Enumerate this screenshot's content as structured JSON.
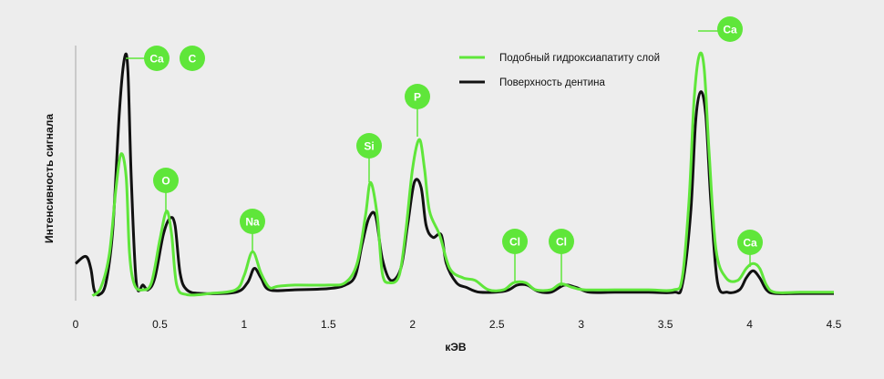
{
  "colors": {
    "background": "#ededed",
    "series_green": "#5fe63a",
    "series_black": "#111111",
    "badge": "#5fe63a",
    "axis": "#999999"
  },
  "chart_data": {
    "type": "line",
    "xlabel": "кЭВ",
    "ylabel": "Интенсивность сигнала",
    "xlim": [
      0,
      4.5
    ],
    "ylim": [
      0,
      100
    ],
    "xticks": [
      "0",
      "0.5",
      "1",
      "1.5",
      "2",
      "2.5",
      "3",
      "3.5",
      "4",
      "4.5"
    ],
    "grid": false,
    "legend_position": "top-center",
    "series": [
      {
        "name": "Подобный гидроксиапатиту слой",
        "color": "#5fe63a",
        "points": [
          [
            0.1,
            0.5
          ],
          [
            0.15,
            4
          ],
          [
            0.2,
            18
          ],
          [
            0.24,
            46
          ],
          [
            0.27,
            60
          ],
          [
            0.3,
            50
          ],
          [
            0.32,
            18
          ],
          [
            0.35,
            5
          ],
          [
            0.4,
            3
          ],
          [
            0.45,
            6
          ],
          [
            0.5,
            24
          ],
          [
            0.54,
            36
          ],
          [
            0.57,
            26
          ],
          [
            0.6,
            5
          ],
          [
            0.66,
            1
          ],
          [
            0.8,
            1.5
          ],
          [
            0.95,
            3
          ],
          [
            1.0,
            9
          ],
          [
            1.05,
            19
          ],
          [
            1.1,
            10
          ],
          [
            1.15,
            4
          ],
          [
            1.2,
            4.5
          ],
          [
            1.3,
            5
          ],
          [
            1.5,
            5
          ],
          [
            1.6,
            6
          ],
          [
            1.67,
            14
          ],
          [
            1.72,
            34
          ],
          [
            1.75,
            48
          ],
          [
            1.79,
            34
          ],
          [
            1.82,
            10
          ],
          [
            1.86,
            6
          ],
          [
            1.92,
            9
          ],
          [
            1.96,
            28
          ],
          [
            2.0,
            54
          ],
          [
            2.04,
            66
          ],
          [
            2.07,
            54
          ],
          [
            2.1,
            36
          ],
          [
            2.16,
            26
          ],
          [
            2.22,
            12
          ],
          [
            2.3,
            8
          ],
          [
            2.37,
            7
          ],
          [
            2.45,
            3
          ],
          [
            2.54,
            3
          ],
          [
            2.6,
            6
          ],
          [
            2.67,
            6
          ],
          [
            2.73,
            3
          ],
          [
            2.82,
            3
          ],
          [
            2.88,
            5.5
          ],
          [
            2.95,
            4
          ],
          [
            3.02,
            3
          ],
          [
            3.2,
            3
          ],
          [
            3.4,
            3
          ],
          [
            3.55,
            3
          ],
          [
            3.6,
            8
          ],
          [
            3.64,
            40
          ],
          [
            3.67,
            82
          ],
          [
            3.7,
            101
          ],
          [
            3.73,
            96
          ],
          [
            3.76,
            60
          ],
          [
            3.8,
            20
          ],
          [
            3.86,
            8
          ],
          [
            3.93,
            7
          ],
          [
            3.98,
            12
          ],
          [
            4.02,
            14
          ],
          [
            4.06,
            12
          ],
          [
            4.1,
            5
          ],
          [
            4.15,
            2
          ],
          [
            4.3,
            2
          ],
          [
            4.5,
            2
          ]
        ]
      },
      {
        "name": "Поверхность дентина",
        "color": "#111111",
        "points": [
          [
            0.0,
            14
          ],
          [
            0.06,
            17
          ],
          [
            0.09,
            12
          ],
          [
            0.11,
            3
          ],
          [
            0.14,
            1
          ],
          [
            0.18,
            6
          ],
          [
            0.22,
            28
          ],
          [
            0.26,
            78
          ],
          [
            0.29,
            100
          ],
          [
            0.31,
            95
          ],
          [
            0.33,
            50
          ],
          [
            0.36,
            6
          ],
          [
            0.4,
            5
          ],
          [
            0.43,
            3
          ],
          [
            0.47,
            8
          ],
          [
            0.52,
            26
          ],
          [
            0.56,
            33
          ],
          [
            0.59,
            30
          ],
          [
            0.62,
            10
          ],
          [
            0.66,
            3
          ],
          [
            0.75,
            1.5
          ],
          [
            0.95,
            2
          ],
          [
            1.02,
            6
          ],
          [
            1.06,
            12
          ],
          [
            1.1,
            8
          ],
          [
            1.15,
            3
          ],
          [
            1.3,
            3
          ],
          [
            1.5,
            3.5
          ],
          [
            1.6,
            5
          ],
          [
            1.66,
            9
          ],
          [
            1.7,
            22
          ],
          [
            1.74,
            33
          ],
          [
            1.78,
            34
          ],
          [
            1.82,
            16
          ],
          [
            1.87,
            7
          ],
          [
            1.93,
            12
          ],
          [
            1.97,
            30
          ],
          [
            2.01,
            48
          ],
          [
            2.05,
            46
          ],
          [
            2.08,
            30
          ],
          [
            2.12,
            25
          ],
          [
            2.17,
            26
          ],
          [
            2.2,
            14
          ],
          [
            2.26,
            6
          ],
          [
            2.32,
            4
          ],
          [
            2.4,
            2
          ],
          [
            2.55,
            2.5
          ],
          [
            2.62,
            5
          ],
          [
            2.68,
            5
          ],
          [
            2.74,
            2.5
          ],
          [
            2.82,
            2
          ],
          [
            2.9,
            5
          ],
          [
            2.97,
            4
          ],
          [
            3.05,
            2
          ],
          [
            3.2,
            2
          ],
          [
            3.4,
            2
          ],
          [
            3.55,
            2
          ],
          [
            3.6,
            5
          ],
          [
            3.65,
            35
          ],
          [
            3.68,
            74
          ],
          [
            3.71,
            86
          ],
          [
            3.74,
            76
          ],
          [
            3.77,
            40
          ],
          [
            3.81,
            6
          ],
          [
            3.87,
            2
          ],
          [
            3.94,
            3
          ],
          [
            3.98,
            8
          ],
          [
            4.02,
            11
          ],
          [
            4.06,
            8
          ],
          [
            4.1,
            3
          ],
          [
            4.15,
            1.5
          ],
          [
            4.3,
            1.5
          ],
          [
            4.5,
            1.5
          ]
        ]
      }
    ],
    "annotations": [
      {
        "label": "Ca",
        "x": 0.3,
        "y": 100
      },
      {
        "label": "C",
        "x": 0.3,
        "y": 100
      },
      {
        "label": "O",
        "x": 0.54,
        "y": 36
      },
      {
        "label": "Na",
        "x": 1.05,
        "y": 19
      },
      {
        "label": "Si",
        "x": 1.75,
        "y": 48
      },
      {
        "label": "P",
        "x": 2.04,
        "y": 66
      },
      {
        "label": "Cl",
        "x": 2.63,
        "y": 6
      },
      {
        "label": "Cl",
        "x": 2.88,
        "y": 5.5
      },
      {
        "label": "Ca",
        "x": 3.7,
        "y": 101
      },
      {
        "label": "Ca",
        "x": 4.02,
        "y": 14
      }
    ]
  }
}
